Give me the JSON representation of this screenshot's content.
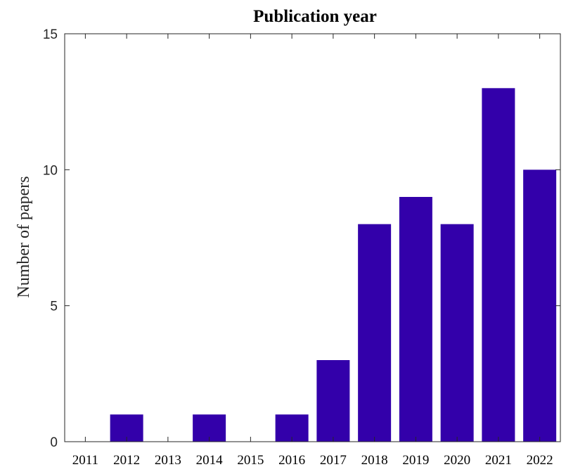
{
  "chart_data": {
    "type": "bar",
    "title": "Publication year",
    "xlabel": "",
    "ylabel": "Number of papers",
    "categories": [
      "2011",
      "2012",
      "2013",
      "2014",
      "2015",
      "2016",
      "2017",
      "2018",
      "2019",
      "2020",
      "2021",
      "2022"
    ],
    "values": [
      0,
      1,
      0,
      1,
      0,
      1,
      3,
      8,
      9,
      8,
      13,
      10
    ],
    "ylim": [
      0,
      15
    ],
    "yticks": [
      0,
      5,
      10,
      15
    ],
    "grid": false,
    "bar_color": "#3300aa",
    "axis_color": "#262626"
  }
}
